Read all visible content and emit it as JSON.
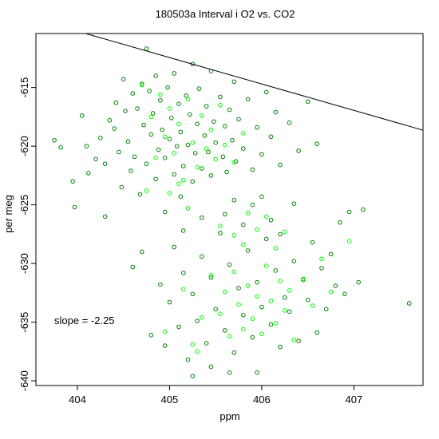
{
  "chart_data": {
    "type": "scatter",
    "title": "180503a   Interval i O2 vs. CO2",
    "xlabel": "ppm",
    "ylabel": "per meg",
    "xlim": [
      403.55,
      407.75
    ],
    "ylim": [
      -640.4,
      -610.4
    ],
    "x_ticks": [
      404,
      405,
      406,
      407
    ],
    "y_ticks": [
      -640,
      -635,
      -630,
      -625,
      -620,
      -615
    ],
    "grid": false,
    "annotation": "slope =  -2.25",
    "fit_line": {
      "slope": -2.25,
      "intercept": 298.8
    },
    "series": [
      {
        "color": "#008000",
        "marker": "open-circle",
        "points": [
          [
            403.75,
            -619.5
          ],
          [
            403.82,
            -620.1
          ],
          [
            403.95,
            -623.0
          ],
          [
            403.97,
            -625.2
          ],
          [
            404.05,
            -617.4
          ],
          [
            404.1,
            -620.0
          ],
          [
            404.12,
            -622.3
          ],
          [
            404.2,
            -621.1
          ],
          [
            404.25,
            -619.3
          ],
          [
            404.3,
            -626.0
          ],
          [
            404.3,
            -621.5
          ],
          [
            404.35,
            -617.8
          ],
          [
            404.4,
            -618.5
          ],
          [
            404.42,
            -616.3
          ],
          [
            404.45,
            -620.5
          ],
          [
            404.48,
            -623.5
          ],
          [
            404.5,
            -614.3
          ],
          [
            404.52,
            -617.0
          ],
          [
            404.55,
            -619.6
          ],
          [
            404.58,
            -622.1
          ],
          [
            404.6,
            -615.5
          ],
          [
            404.62,
            -620.9
          ],
          [
            404.65,
            -616.8
          ],
          [
            404.68,
            -624.1
          ],
          [
            404.7,
            -614.7
          ],
          [
            404.72,
            -618.2
          ],
          [
            404.75,
            -611.7
          ],
          [
            404.75,
            -621.5
          ],
          [
            404.78,
            -615.3
          ],
          [
            404.8,
            -619.0
          ],
          [
            404.82,
            -617.2
          ],
          [
            404.85,
            -622.8
          ],
          [
            404.85,
            -614.0
          ],
          [
            404.88,
            -620.3
          ],
          [
            404.9,
            -616.1
          ],
          [
            404.92,
            -618.6
          ],
          [
            404.95,
            -621.0
          ],
          [
            404.95,
            -625.6
          ],
          [
            404.98,
            -615.0
          ],
          [
            405.0,
            -619.4
          ],
          [
            405.02,
            -617.6
          ],
          [
            405.05,
            -622.4
          ],
          [
            405.05,
            -613.8
          ],
          [
            405.08,
            -620.0
          ],
          [
            405.1,
            -616.4
          ],
          [
            405.12,
            -618.8
          ],
          [
            405.12,
            -624.3
          ],
          [
            405.15,
            -621.7
          ],
          [
            405.18,
            -615.7
          ],
          [
            405.2,
            -619.9
          ],
          [
            405.22,
            -617.3
          ],
          [
            405.25,
            -613.0
          ],
          [
            405.25,
            -623.0
          ],
          [
            405.28,
            -620.6
          ],
          [
            405.3,
            -618.1
          ],
          [
            405.32,
            -615.1
          ],
          [
            405.35,
            -621.9
          ],
          [
            405.38,
            -619.1
          ],
          [
            405.4,
            -616.6
          ],
          [
            405.42,
            -620.5
          ],
          [
            405.45,
            -622.5
          ],
          [
            405.45,
            -613.6
          ],
          [
            405.48,
            -617.9
          ],
          [
            405.5,
            -619.7
          ],
          [
            405.55,
            -615.8
          ],
          [
            405.58,
            -620.9
          ],
          [
            405.6,
            -618.3
          ],
          [
            405.62,
            -622.2
          ],
          [
            405.65,
            -616.9
          ],
          [
            405.68,
            -619.5
          ],
          [
            405.7,
            -614.5
          ],
          [
            405.72,
            -621.3
          ],
          [
            405.75,
            -617.7
          ],
          [
            405.8,
            -620.2
          ],
          [
            405.85,
            -616.0
          ],
          [
            405.9,
            -622.0
          ],
          [
            405.95,
            -618.4
          ],
          [
            406.0,
            -620.7
          ],
          [
            406.05,
            -615.4
          ],
          [
            406.1,
            -619.2
          ],
          [
            406.15,
            -617.1
          ],
          [
            406.2,
            -621.6
          ],
          [
            406.3,
            -618.0
          ],
          [
            406.4,
            -620.4
          ],
          [
            406.5,
            -616.2
          ],
          [
            406.6,
            -619.8
          ],
          [
            404.6,
            -630.3
          ],
          [
            404.7,
            -629.0
          ],
          [
            404.8,
            -636.1
          ],
          [
            404.9,
            -631.8
          ],
          [
            404.95,
            -637.0
          ],
          [
            405.0,
            -633.3
          ],
          [
            405.05,
            -628.6
          ],
          [
            405.1,
            -635.4
          ],
          [
            405.15,
            -630.8
          ],
          [
            405.2,
            -638.2
          ],
          [
            405.25,
            -632.6
          ],
          [
            405.3,
            -634.9
          ],
          [
            405.35,
            -629.4
          ],
          [
            405.4,
            -636.8
          ],
          [
            405.45,
            -631.2
          ],
          [
            405.5,
            -633.9
          ],
          [
            405.55,
            -627.4
          ],
          [
            405.6,
            -635.7
          ],
          [
            405.65,
            -630.1
          ],
          [
            405.7,
            -637.6
          ],
          [
            405.75,
            -632.1
          ],
          [
            405.8,
            -634.4
          ],
          [
            405.85,
            -628.9
          ],
          [
            405.9,
            -636.3
          ],
          [
            405.95,
            -631.6
          ],
          [
            406.0,
            -633.7
          ],
          [
            406.05,
            -627.9
          ],
          [
            406.1,
            -635.2
          ],
          [
            406.15,
            -630.6
          ],
          [
            406.2,
            -637.1
          ],
          [
            406.25,
            -632.9
          ],
          [
            406.3,
            -634.1
          ],
          [
            406.35,
            -629.8
          ],
          [
            406.4,
            -636.6
          ],
          [
            406.45,
            -631.4
          ],
          [
            406.5,
            -633.1
          ],
          [
            406.55,
            -628.2
          ],
          [
            406.6,
            -635.9
          ],
          [
            406.65,
            -630.4
          ],
          [
            406.7,
            -633.9
          ],
          [
            406.75,
            -629.2
          ],
          [
            406.8,
            -631.9
          ],
          [
            406.85,
            -626.5
          ],
          [
            406.9,
            -632.6
          ],
          [
            406.95,
            -625.6
          ],
          [
            407.05,
            -631.6
          ],
          [
            407.1,
            -625.4
          ],
          [
            407.6,
            -633.4
          ],
          [
            405.6,
            -625.8
          ],
          [
            405.7,
            -624.6
          ],
          [
            405.8,
            -626.7
          ],
          [
            405.9,
            -625.0
          ],
          [
            406.0,
            -624.3
          ],
          [
            406.1,
            -626.3
          ],
          [
            406.2,
            -627.5
          ],
          [
            405.25,
            -639.6
          ],
          [
            405.45,
            -638.8
          ],
          [
            405.65,
            -639.3
          ],
          [
            405.95,
            -639.3
          ],
          [
            405.35,
            -626.1
          ],
          [
            405.15,
            -627.2
          ],
          [
            406.35,
            -624.9
          ]
        ]
      },
      {
        "color": "#00ff00",
        "marker": "open-circle",
        "points": [
          [
            404.7,
            -614.8
          ],
          [
            404.8,
            -617.5
          ],
          [
            404.85,
            -621.0
          ],
          [
            404.9,
            -615.6
          ],
          [
            404.95,
            -619.2
          ],
          [
            405.0,
            -616.8
          ],
          [
            405.05,
            -620.6
          ],
          [
            405.1,
            -618.1
          ],
          [
            405.15,
            -622.9
          ],
          [
            405.2,
            -616.0
          ],
          [
            405.25,
            -619.7
          ],
          [
            405.3,
            -621.8
          ],
          [
            405.35,
            -617.4
          ],
          [
            405.4,
            -620.2
          ],
          [
            405.45,
            -618.6
          ],
          [
            405.5,
            -621.1
          ],
          [
            405.55,
            -616.5
          ],
          [
            405.6,
            -619.9
          ],
          [
            405.7,
            -621.4
          ],
          [
            405.8,
            -618.9
          ],
          [
            405.0,
            -624.0
          ],
          [
            405.2,
            -625.3
          ],
          [
            405.55,
            -626.8
          ],
          [
            405.7,
            -627.6
          ],
          [
            405.8,
            -628.4
          ],
          [
            405.85,
            -625.7
          ],
          [
            405.95,
            -627.1
          ],
          [
            406.05,
            -626.0
          ],
          [
            406.15,
            -628.7
          ],
          [
            406.25,
            -627.3
          ],
          [
            404.75,
            -623.8
          ],
          [
            405.1,
            -623.2
          ],
          [
            405.45,
            -631.0
          ],
          [
            405.55,
            -634.3
          ],
          [
            405.6,
            -632.4
          ],
          [
            405.65,
            -636.2
          ],
          [
            405.7,
            -630.7
          ],
          [
            405.75,
            -633.5
          ],
          [
            405.8,
            -635.6
          ],
          [
            405.85,
            -631.9
          ],
          [
            405.9,
            -634.7
          ],
          [
            405.95,
            -632.8
          ],
          [
            406.0,
            -636.0
          ],
          [
            406.05,
            -630.2
          ],
          [
            406.1,
            -633.2
          ],
          [
            406.15,
            -635.1
          ],
          [
            406.2,
            -631.5
          ],
          [
            406.25,
            -634.0
          ],
          [
            406.3,
            -632.3
          ],
          [
            406.35,
            -636.5
          ],
          [
            406.45,
            -631.3
          ],
          [
            406.55,
            -633.6
          ],
          [
            405.25,
            -636.9
          ],
          [
            405.35,
            -634.6
          ],
          [
            405.15,
            -632.2
          ],
          [
            405.3,
            -637.5
          ],
          [
            404.95,
            -635.8
          ],
          [
            406.65,
            -629.6
          ],
          [
            406.75,
            -632.4
          ],
          [
            406.95,
            -628.1
          ]
        ]
      }
    ]
  }
}
